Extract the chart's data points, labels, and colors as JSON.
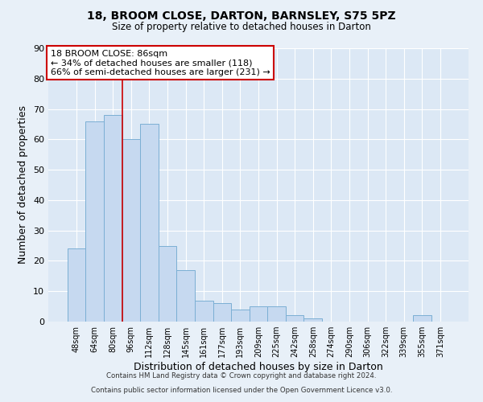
{
  "title1": "18, BROOM CLOSE, DARTON, BARNSLEY, S75 5PZ",
  "title2": "Size of property relative to detached houses in Darton",
  "xlabel": "Distribution of detached houses by size in Darton",
  "ylabel": "Number of detached properties",
  "bar_labels": [
    "48sqm",
    "64sqm",
    "80sqm",
    "96sqm",
    "112sqm",
    "128sqm",
    "145sqm",
    "161sqm",
    "177sqm",
    "193sqm",
    "209sqm",
    "225sqm",
    "242sqm",
    "258sqm",
    "274sqm",
    "290sqm",
    "306sqm",
    "322sqm",
    "339sqm",
    "355sqm",
    "371sqm"
  ],
  "bar_values": [
    24,
    66,
    68,
    60,
    65,
    25,
    17,
    7,
    6,
    4,
    5,
    5,
    2,
    1,
    0,
    0,
    0,
    0,
    0,
    2,
    0
  ],
  "bar_color": "#c6d9f0",
  "bar_edge_color": "#7bafd4",
  "vline_x": 2.5,
  "vline_color": "#cc0000",
  "annotation_title": "18 BROOM CLOSE: 86sqm",
  "annotation_line1": "← 34% of detached houses are smaller (118)",
  "annotation_line2": "66% of semi-detached houses are larger (231) →",
  "annotation_box_color": "#ffffff",
  "annotation_box_edge_color": "#cc0000",
  "ylim": [
    0,
    90
  ],
  "yticks": [
    0,
    10,
    20,
    30,
    40,
    50,
    60,
    70,
    80,
    90
  ],
  "footer1": "Contains HM Land Registry data © Crown copyright and database right 2024.",
  "footer2": "Contains public sector information licensed under the Open Government Licence v3.0.",
  "background_color": "#e8f0f8",
  "plot_background": "#dce8f5"
}
